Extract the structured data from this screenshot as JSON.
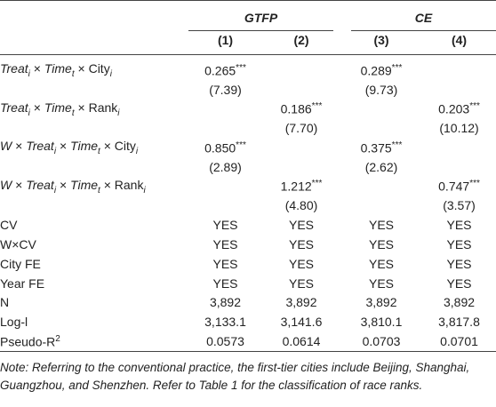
{
  "header": {
    "groups": [
      {
        "label": "GTFP"
      },
      {
        "label": "CE"
      }
    ],
    "columns": [
      "(1)",
      "(2)",
      "(3)",
      "(4)"
    ]
  },
  "coef_rows": [
    {
      "label": [
        "Treat",
        "i",
        " × ",
        "Time",
        "t",
        " × City",
        "i"
      ],
      "coef": [
        [
          "0.265",
          "***"
        ],
        null,
        [
          "0.289",
          "***"
        ],
        null
      ],
      "t": [
        "(7.39)",
        null,
        "(9.73)",
        null
      ]
    },
    {
      "label": [
        "Treat",
        "i",
        " × ",
        "Time",
        "t",
        " × Rank",
        "i"
      ],
      "coef": [
        null,
        [
          "0.186",
          "***"
        ],
        null,
        [
          "0.203",
          "***"
        ]
      ],
      "t": [
        null,
        "(7.70)",
        null,
        "(10.12)"
      ]
    },
    {
      "label": [
        "W",
        " × ",
        "Treat",
        "i",
        " × ",
        "Time",
        "t",
        " × City",
        "i"
      ],
      "coef": [
        [
          "0.850",
          "***"
        ],
        null,
        [
          "0.375",
          "***"
        ],
        null
      ],
      "t": [
        "(2.89)",
        null,
        "(2.62)",
        null
      ]
    },
    {
      "label": [
        "W",
        " × ",
        "Treat",
        "i",
        " × ",
        "Time",
        "t",
        " × Rank",
        "i"
      ],
      "coef": [
        null,
        [
          "1.212",
          "***"
        ],
        null,
        [
          "0.747",
          "***"
        ]
      ],
      "t": [
        null,
        "(4.80)",
        null,
        "(3.57)"
      ]
    }
  ],
  "stat_rows": [
    {
      "label": [
        "CV"
      ],
      "values": [
        "YES",
        "YES",
        "YES",
        "YES"
      ]
    },
    {
      "label": [
        "W×CV"
      ],
      "values": [
        "YES",
        "YES",
        "YES",
        "YES"
      ]
    },
    {
      "label": [
        "City FE"
      ],
      "values": [
        "YES",
        "YES",
        "YES",
        "YES"
      ]
    },
    {
      "label": [
        "Year FE"
      ],
      "values": [
        "YES",
        "YES",
        "YES",
        "YES"
      ]
    },
    {
      "label": [
        "N"
      ],
      "values": [
        "3,892",
        "3,892",
        "3,892",
        "3,892"
      ]
    },
    {
      "label": [
        "Log-l"
      ],
      "values": [
        "3,133.1",
        "3,141.6",
        "3,810.1",
        "3,817.8"
      ]
    },
    {
      "label": [
        "Pseudo-R",
        "2"
      ],
      "values": [
        "0.0573",
        "0.0614",
        "0.0703",
        "0.0701"
      ]
    }
  ],
  "note": "Note: Referring to the conventional practice, the first-tier cities include Beijing, Shanghai, Guangzhou, and Shenzhen. Refer to Table 1 for the classification of race ranks."
}
